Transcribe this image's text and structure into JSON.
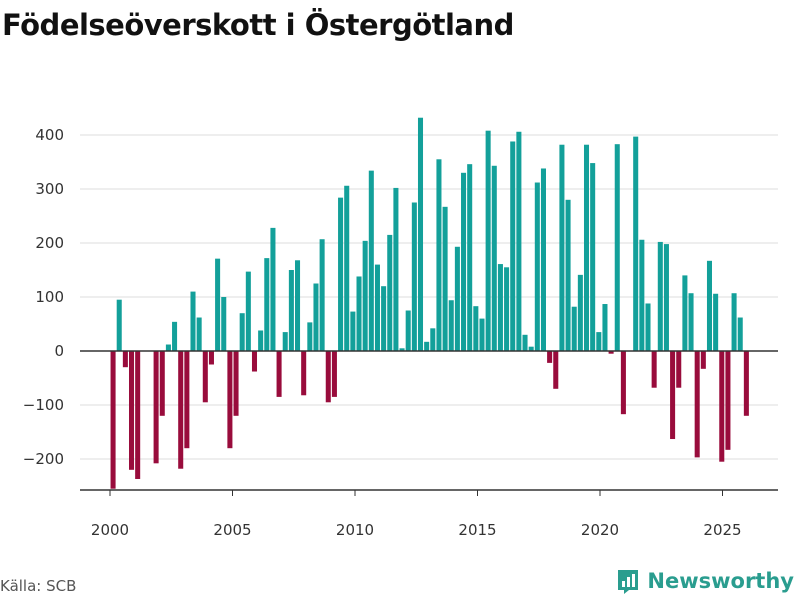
{
  "title": "Födelseöverskott i Östergötland",
  "source": "Källa: SCB",
  "brand": "Newsworthy",
  "colors": {
    "positive": "#13a09a",
    "negative": "#990c3c",
    "brand": "#2a9d8f"
  },
  "chart_data": {
    "type": "bar",
    "title": "Födelseöverskott i Östergötland",
    "xlabel": "",
    "ylabel": "",
    "grid": true,
    "x_start": 2000,
    "frequency": "monthly",
    "x_ticks": [
      2000,
      2005,
      2010,
      2015,
      2020,
      2025
    ],
    "y_ticks": [
      -200,
      -100,
      0,
      100,
      200,
      300,
      400
    ],
    "ylim": [
      -280,
      450
    ],
    "values": [
      -255,
      95,
      -30,
      -220,
      -237,
      0,
      0,
      -208,
      -120,
      12,
      54,
      -218,
      -180,
      110,
      62,
      -95,
      -25,
      171,
      100,
      -180,
      -120,
      70,
      147,
      -38,
      38,
      172,
      228,
      -85,
      35,
      150,
      168,
      -82,
      53,
      125,
      207,
      -95,
      -85,
      284,
      306,
      73,
      138,
      204,
      334,
      160,
      120,
      215,
      302,
      5,
      75,
      275,
      432,
      17,
      42,
      355,
      267,
      94,
      193,
      330,
      346,
      83,
      60,
      408,
      343,
      161,
      155,
      388,
      406,
      30,
      8,
      312,
      338,
      -22,
      -70,
      382,
      280,
      82,
      141,
      382,
      348,
      35,
      87,
      -5,
      383,
      -117,
      0,
      397,
      206,
      88,
      -68,
      202,
      198,
      -163,
      -68,
      140,
      107,
      -197,
      -33,
      167,
      106,
      -205,
      -183,
      107,
      62,
      -120
    ]
  }
}
